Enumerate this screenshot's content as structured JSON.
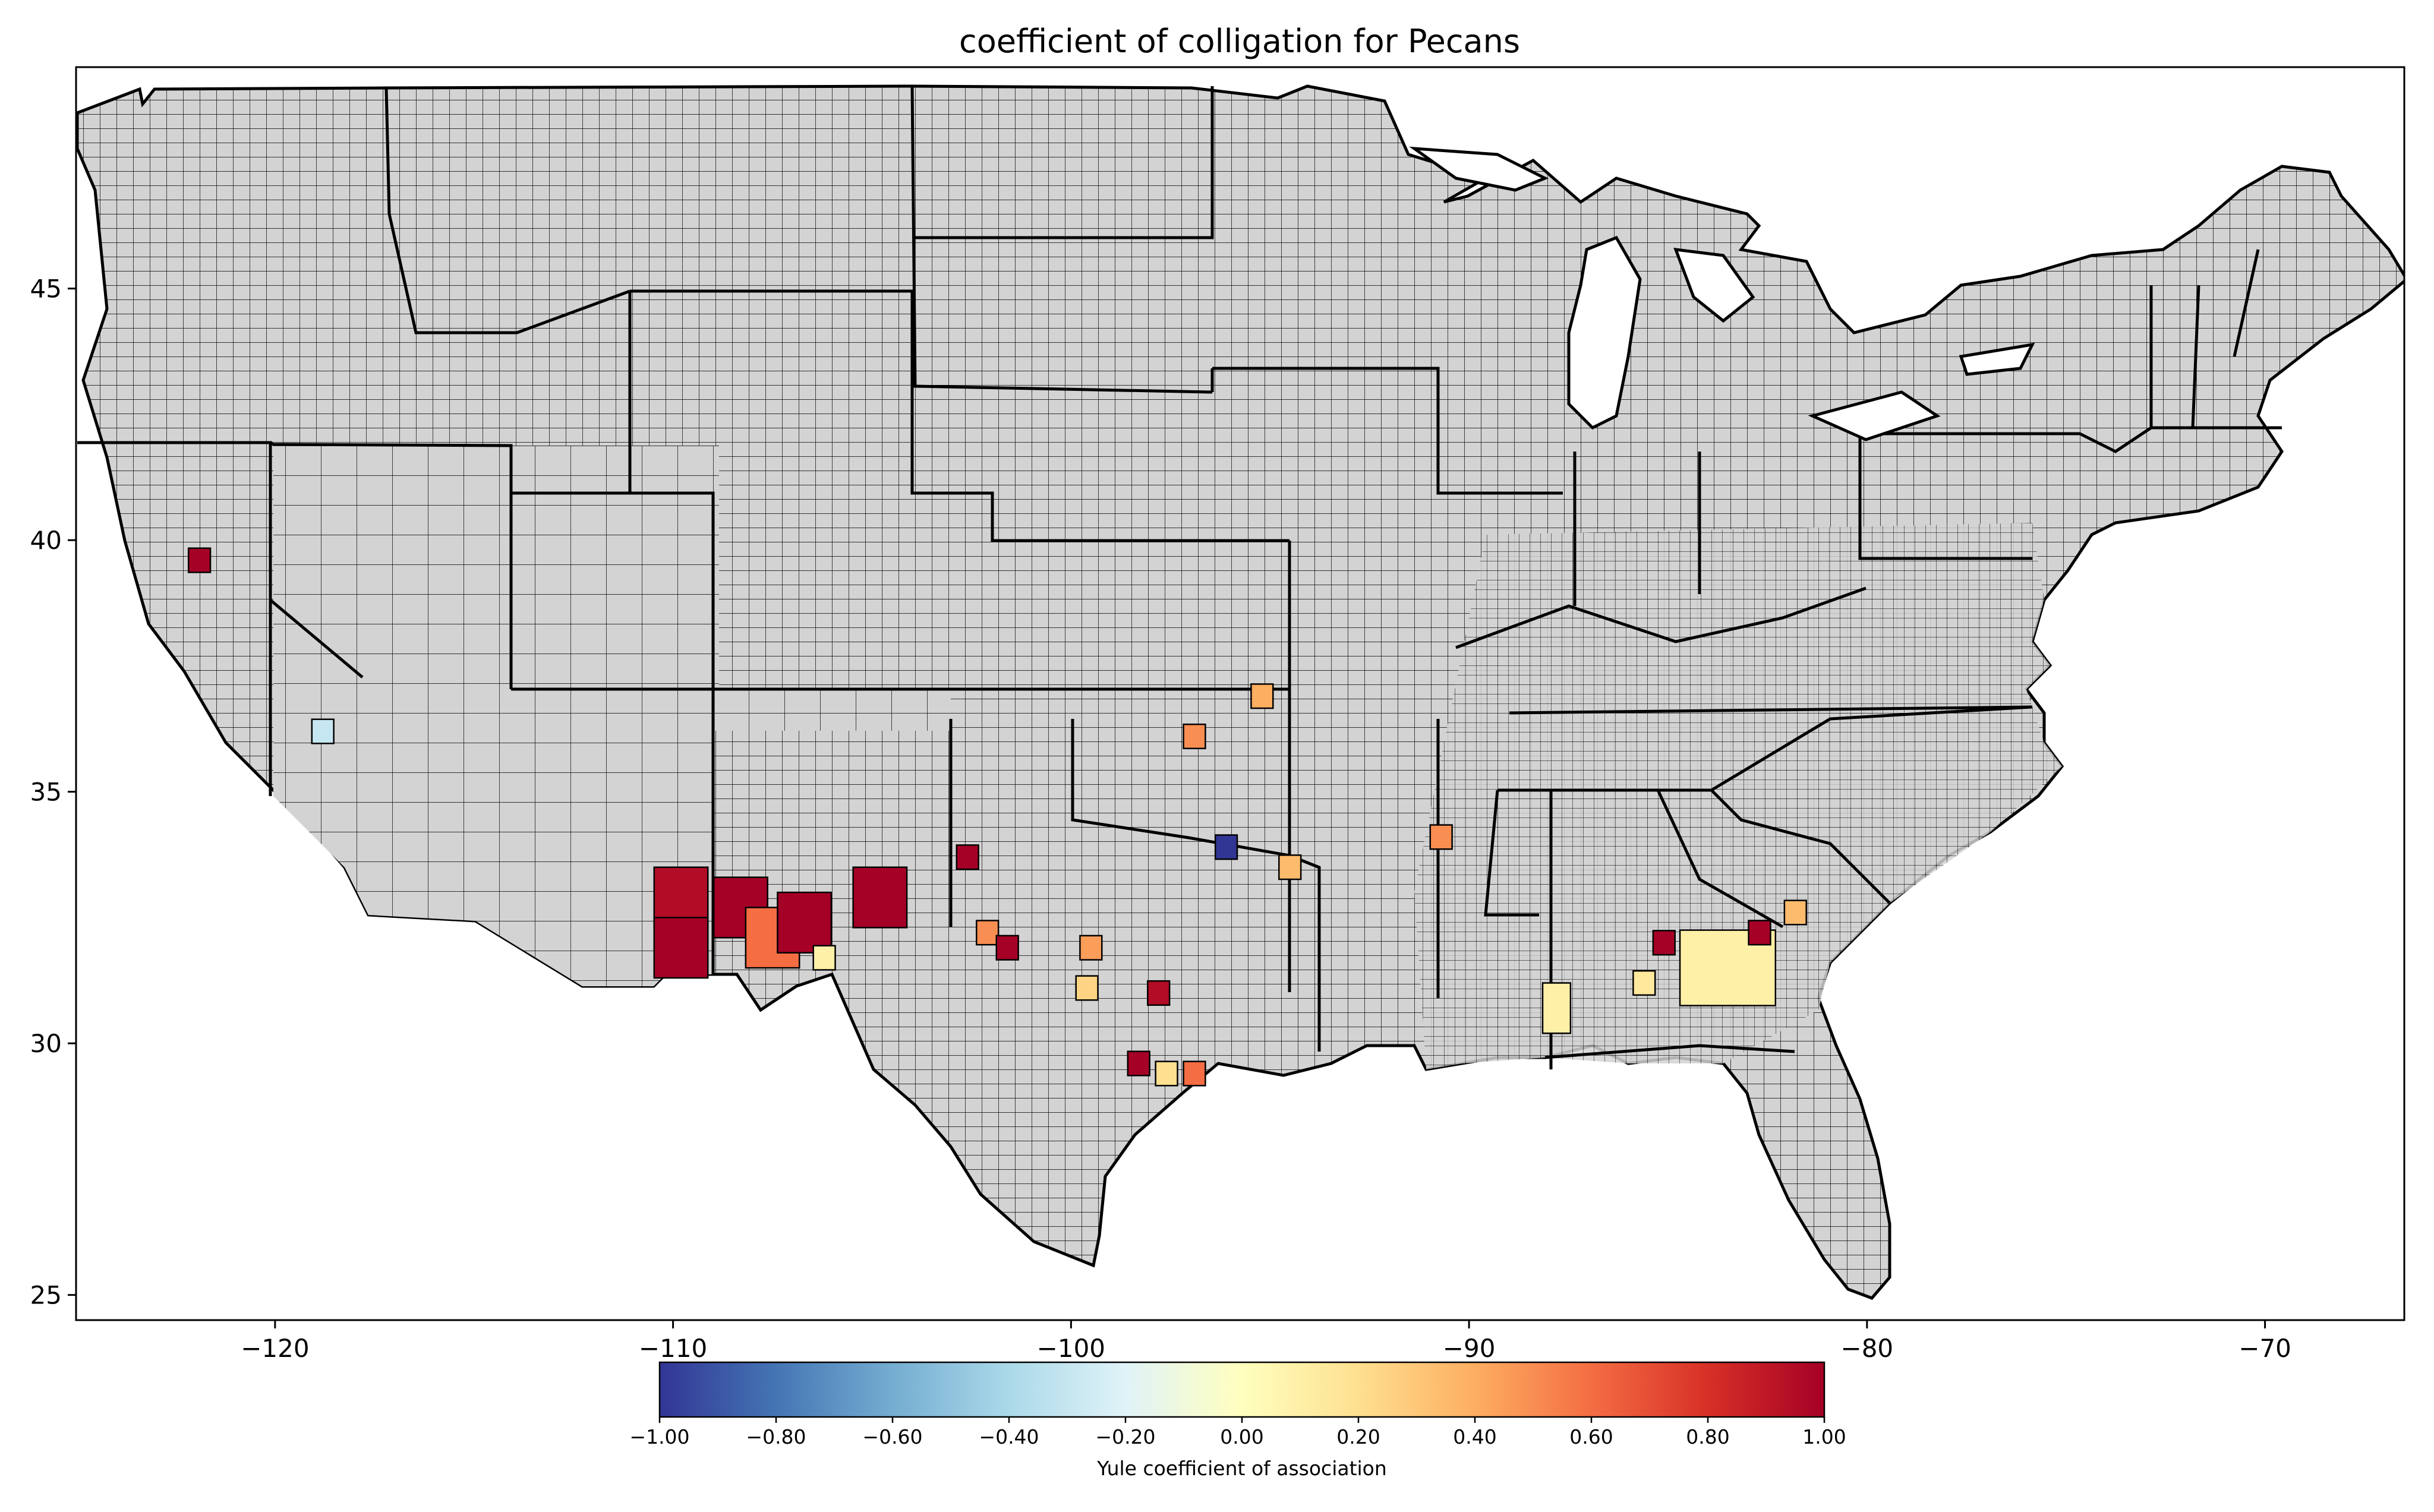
{
  "title": "coefficient of colligation for Pecans",
  "colorbar": {
    "label": "Yule coefficient of association",
    "ticks": [
      "−1.00",
      "−0.80",
      "−0.60",
      "−0.40",
      "−0.20",
      "0.00",
      "0.20",
      "0.40",
      "0.60",
      "0.80",
      "1.00"
    ],
    "min": -1.0,
    "max": 1.0,
    "colormap": "RdYlBu_r",
    "stops": [
      "#313695",
      "#4575b4",
      "#74add1",
      "#abd9e9",
      "#e0f3f8",
      "#ffffbf",
      "#fee090",
      "#fdae61",
      "#f46d43",
      "#d73027",
      "#a50026"
    ]
  },
  "axes": {
    "x_ticks": [
      {
        "label": "−120",
        "value": -120
      },
      {
        "label": "−110",
        "value": -110
      },
      {
        "label": "−100",
        "value": -100
      },
      {
        "label": "−90",
        "value": -90
      },
      {
        "label": "−80",
        "value": -80
      },
      {
        "label": "−70",
        "value": -70
      }
    ],
    "y_ticks": [
      {
        "label": "45",
        "value": 45
      },
      {
        "label": "40",
        "value": 40
      },
      {
        "label": "35",
        "value": 35
      },
      {
        "label": "30",
        "value": 30
      },
      {
        "label": "25",
        "value": 25
      }
    ],
    "xlim": [
      -125,
      -66.5
    ],
    "ylim": [
      24.5,
      49.4
    ]
  },
  "colors": {
    "land": "#d3d3d3",
    "county_border": "#000000",
    "state_border": "#000000",
    "no_data": "#d3d3d3"
  },
  "chart_data": {
    "type": "map",
    "value_label": "Yule coefficient of association",
    "regions": [
      {
        "region": "Northern California county",
        "lon": -121.9,
        "lat": 39.6,
        "value": 1.0
      },
      {
        "region": "Central California county",
        "lon": -118.8,
        "lat": 36.2,
        "value": -0.3
      },
      {
        "region": "SE Arizona (Graham)",
        "lon": -109.8,
        "lat": 32.9,
        "value": 0.95
      },
      {
        "region": "SE Arizona (Cochise)",
        "lon": -109.8,
        "lat": 31.9,
        "value": 1.0
      },
      {
        "region": "SW New Mexico (Grant)",
        "lon": -108.3,
        "lat": 32.7,
        "value": 1.0
      },
      {
        "region": "SW New Mexico (Luna)",
        "lon": -107.5,
        "lat": 32.1,
        "value": 0.6
      },
      {
        "region": "S New Mexico (Dona Ana)",
        "lon": -106.7,
        "lat": 32.4,
        "value": 1.0
      },
      {
        "region": "S New Mexico (Otero/Eddy)",
        "lon": -104.8,
        "lat": 32.9,
        "value": 1.0
      },
      {
        "region": "West Texas (El Paso)",
        "lon": -106.2,
        "lat": 31.7,
        "value": 0.1
      },
      {
        "region": "West Texas county",
        "lon": -102.6,
        "lat": 33.7,
        "value": 1.0
      },
      {
        "region": "West Texas county 2",
        "lon": -102.1,
        "lat": 32.2,
        "value": 0.5
      },
      {
        "region": "West Texas county 3",
        "lon": -101.6,
        "lat": 31.9,
        "value": 1.0
      },
      {
        "region": "Central Texas county",
        "lon": -99.5,
        "lat": 31.9,
        "value": 0.45
      },
      {
        "region": "Central Texas county 2",
        "lon": -97.8,
        "lat": 31.0,
        "value": 0.95
      },
      {
        "region": "Central Texas county 3",
        "lon": -99.6,
        "lat": 31.1,
        "value": 0.25
      },
      {
        "region": "South Texas county",
        "lon": -98.3,
        "lat": 29.6,
        "value": 1.0
      },
      {
        "region": "South Texas county 2",
        "lon": -97.6,
        "lat": 29.4,
        "value": 0.2
      },
      {
        "region": "South Texas county 3",
        "lon": -96.9,
        "lat": 29.4,
        "value": 0.6
      },
      {
        "region": "Oklahoma county",
        "lon": -96.9,
        "lat": 36.1,
        "value": 0.5
      },
      {
        "region": "Oklahoma county 2",
        "lon": -95.2,
        "lat": 36.9,
        "value": 0.4
      },
      {
        "region": "Southern Oklahoma county",
        "lon": -96.1,
        "lat": 33.9,
        "value": -1.0
      },
      {
        "region": "NE Texas county",
        "lon": -94.5,
        "lat": 33.5,
        "value": 0.35
      },
      {
        "region": "Mississippi county",
        "lon": -90.7,
        "lat": 34.1,
        "value": 0.5
      },
      {
        "region": "SW Alabama counties",
        "lon": -87.8,
        "lat": 30.7,
        "value": 0.1
      },
      {
        "region": "Alabama county",
        "lon": -85.6,
        "lat": 31.2,
        "value": 0.15
      },
      {
        "region": "SE Alabama county",
        "lon": -85.1,
        "lat": 32.0,
        "value": 1.0
      },
      {
        "region": "South Georgia counties",
        "lon": -83.5,
        "lat": 31.5,
        "value": 0.1
      },
      {
        "region": "Georgia county",
        "lon": -82.7,
        "lat": 32.2,
        "value": 1.0
      },
      {
        "region": "East Georgia county",
        "lon": -81.8,
        "lat": 32.6,
        "value": 0.35
      }
    ]
  }
}
